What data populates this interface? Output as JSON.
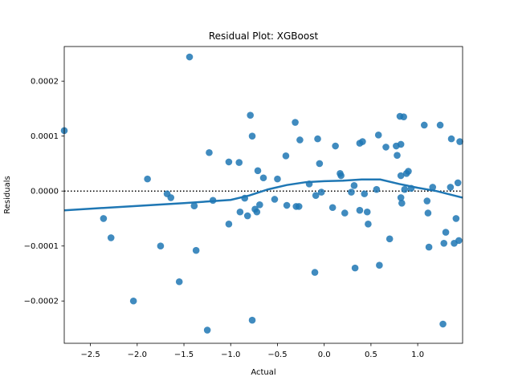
{
  "chart_data": {
    "type": "scatter",
    "title": "Residual Plot: XGBoost",
    "xlabel": "Actual",
    "ylabel": "Residuals",
    "xlim": [
      -2.78,
      1.48
    ],
    "ylim": [
      -0.000277,
      0.000263
    ],
    "x_ticks": [
      -2.5,
      -2.0,
      -1.5,
      -1.0,
      -0.5,
      0.0,
      0.5,
      1.0
    ],
    "x_tick_labels": [
      "−2.5",
      "−2.0",
      "−1.5",
      "−1.0",
      "−0.5",
      "0.0",
      "0.5",
      "1.0"
    ],
    "y_ticks": [
      -0.0002,
      -0.0001,
      0.0,
      0.0001,
      0.0002
    ],
    "y_tick_labels": [
      "−0.0002",
      "−0.0001",
      "0.0000",
      "0.0001",
      "0.0002"
    ],
    "grid": false,
    "zero_line": 0.0,
    "colors": {
      "points": "#1f77b4",
      "line": "#1f77b4",
      "zero_line": "#000000"
    },
    "points": [
      [
        -2.78,
        0.00011
      ],
      [
        -2.36,
        -5e-05
      ],
      [
        -2.28,
        -8.5e-05
      ],
      [
        -2.04,
        -0.0002
      ],
      [
        -1.89,
        2.2e-05
      ],
      [
        -1.75,
        -0.0001
      ],
      [
        -1.68,
        -5e-06
      ],
      [
        -1.64,
        -1.2e-05
      ],
      [
        -1.55,
        -0.000165
      ],
      [
        -1.44,
        0.000244
      ],
      [
        -1.39,
        -2.7e-05
      ],
      [
        -1.37,
        -0.000108
      ],
      [
        -1.25,
        -0.000253
      ],
      [
        -1.23,
        7e-05
      ],
      [
        -1.19,
        -1.7e-05
      ],
      [
        -1.02,
        5.3e-05
      ],
      [
        -1.02,
        -6e-05
      ],
      [
        -0.91,
        5.2e-05
      ],
      [
        -0.9,
        -3.8e-05
      ],
      [
        -0.85,
        -1.3e-05
      ],
      [
        -0.82,
        -4.5e-05
      ],
      [
        -0.79,
        0.000138
      ],
      [
        -0.77,
        -0.000235
      ],
      [
        -0.77,
        0.0001
      ],
      [
        -0.74,
        -3.3e-05
      ],
      [
        -0.72,
        -3.8e-05
      ],
      [
        -0.71,
        3.7e-05
      ],
      [
        -0.69,
        -2.5e-05
      ],
      [
        -0.65,
        2.4e-05
      ],
      [
        -0.53,
        -1.5e-05
      ],
      [
        -0.5,
        2.2e-05
      ],
      [
        -0.41,
        6.4e-05
      ],
      [
        -0.4,
        -2.6e-05
      ],
      [
        -0.31,
        0.000125
      ],
      [
        -0.3,
        -2.8e-05
      ],
      [
        -0.27,
        -2.8e-05
      ],
      [
        -0.26,
        9.3e-05
      ],
      [
        -0.16,
        1.3e-05
      ],
      [
        -0.1,
        -0.000148
      ],
      [
        -0.09,
        -8e-06
      ],
      [
        -0.07,
        9.5e-05
      ],
      [
        -0.05,
        5e-05
      ],
      [
        -0.03,
        -2e-06
      ],
      [
        0.09,
        -3e-05
      ],
      [
        0.12,
        8.2e-05
      ],
      [
        0.17,
        3.2e-05
      ],
      [
        0.18,
        2.8e-05
      ],
      [
        0.22,
        -4e-05
      ],
      [
        0.29,
        -2e-06
      ],
      [
        0.32,
        1e-05
      ],
      [
        0.33,
        -0.00014
      ],
      [
        0.38,
        -3.5e-05
      ],
      [
        0.38,
        8.7e-05
      ],
      [
        0.41,
        9e-05
      ],
      [
        0.43,
        -5e-06
      ],
      [
        0.46,
        -3.8e-05
      ],
      [
        0.47,
        -6e-05
      ],
      [
        0.56,
        3e-06
      ],
      [
        0.58,
        0.000102
      ],
      [
        0.59,
        -0.000135
      ],
      [
        0.66,
        8e-05
      ],
      [
        0.7,
        -8.7e-05
      ],
      [
        0.77,
        8.2e-05
      ],
      [
        0.78,
        6.5e-05
      ],
      [
        0.81,
        0.000136
      ],
      [
        0.82,
        2.8e-05
      ],
      [
        0.82,
        8.5e-05
      ],
      [
        0.82,
        -1.2e-05
      ],
      [
        0.83,
        -2.2e-05
      ],
      [
        0.85,
        0.000135
      ],
      [
        0.86,
        3e-06
      ],
      [
        0.88,
        3.2e-05
      ],
      [
        0.9,
        3.6e-05
      ],
      [
        0.93,
        5e-06
      ],
      [
        1.07,
        0.00012
      ],
      [
        1.1,
        -1.8e-05
      ],
      [
        1.11,
        -4e-05
      ],
      [
        1.12,
        -0.000102
      ],
      [
        1.16,
        7e-06
      ],
      [
        1.24,
        0.00012
      ],
      [
        1.27,
        -0.000242
      ],
      [
        1.28,
        -9.5e-05
      ],
      [
        1.3,
        -7.5e-05
      ],
      [
        1.35,
        7e-06
      ],
      [
        1.36,
        9.5e-05
      ],
      [
        1.39,
        -9.5e-05
      ],
      [
        1.41,
        -5e-05
      ],
      [
        1.43,
        1.5e-05
      ],
      [
        1.44,
        -9e-05
      ],
      [
        1.45,
        9e-05
      ]
    ],
    "lowess_line": [
      [
        -2.78,
        -3.5e-05
      ],
      [
        -2.0,
        -2.7e-05
      ],
      [
        -1.5,
        -2.2e-05
      ],
      [
        -1.0,
        -1.6e-05
      ],
      [
        -0.8,
        -8e-06
      ],
      [
        -0.6,
        3e-06
      ],
      [
        -0.4,
        1.1e-05
      ],
      [
        -0.2,
        1.6e-05
      ],
      [
        0.0,
        1.8e-05
      ],
      [
        0.2,
        1.9e-05
      ],
      [
        0.4,
        2.1e-05
      ],
      [
        0.6,
        2.1e-05
      ],
      [
        0.8,
        1.3e-05
      ],
      [
        1.0,
        6e-06
      ],
      [
        1.2,
        0.0
      ],
      [
        1.48,
        -1.2e-05
      ]
    ]
  }
}
